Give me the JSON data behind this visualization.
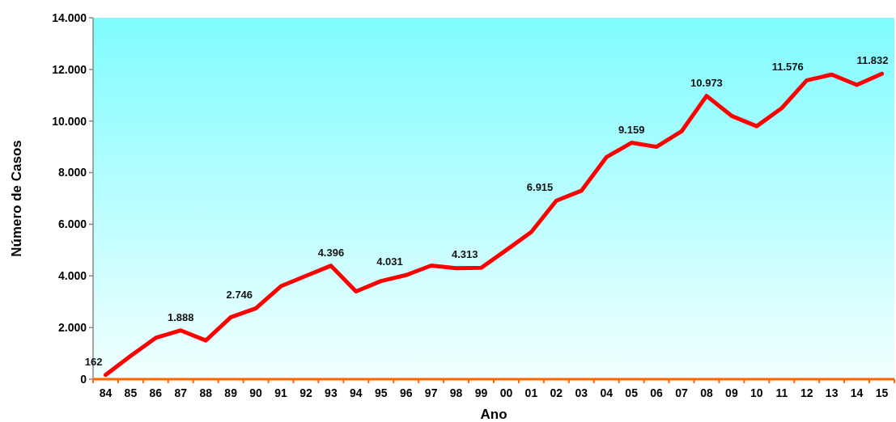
{
  "chart_data": {
    "type": "line",
    "xlabel": "Ano",
    "ylabel": "Número de Casos",
    "categories": [
      "84",
      "85",
      "86",
      "87",
      "88",
      "89",
      "90",
      "91",
      "92",
      "93",
      "94",
      "95",
      "96",
      "97",
      "98",
      "99",
      "00",
      "01",
      "02",
      "03",
      "04",
      "05",
      "06",
      "07",
      "08",
      "09",
      "10",
      "11",
      "12",
      "13",
      "14",
      "15"
    ],
    "series": [
      {
        "color": "#ff0000",
        "values": [
          162,
          900,
          1600,
          1888,
          1500,
          2400,
          2746,
          3600,
          4000,
          4396,
          3400,
          3800,
          4031,
          4400,
          4300,
          4313,
          5000,
          5700,
          6915,
          7300,
          8600,
          9159,
          9000,
          9600,
          10973,
          10200,
          9800,
          10500,
          11576,
          11800,
          11400,
          11832
        ],
        "value_labels": [
          "162",
          null,
          null,
          "1.888",
          null,
          null,
          "2.746",
          null,
          null,
          "4.396",
          null,
          null,
          "4.031",
          null,
          null,
          "4.313",
          null,
          null,
          "6.915",
          null,
          null,
          "9.159",
          null,
          null,
          "10.973",
          null,
          null,
          null,
          "11.576",
          null,
          null,
          "11.832"
        ]
      }
    ],
    "ylim": [
      0,
      14000
    ],
    "yticks": [
      0,
      {
        "value": 2000,
        "label": "2.000"
      },
      {
        "value": 4000,
        "label": "4.000"
      },
      {
        "value": 6000,
        "label": "6.000"
      },
      {
        "value": 8000,
        "label": "8.000"
      },
      {
        "value": 10000,
        "label": "10.000"
      },
      {
        "value": 12000,
        "label": "12.000"
      },
      {
        "value": 14000,
        "label": "14.000"
      }
    ],
    "grid": false,
    "marker": "none",
    "line_style": "solid"
  }
}
